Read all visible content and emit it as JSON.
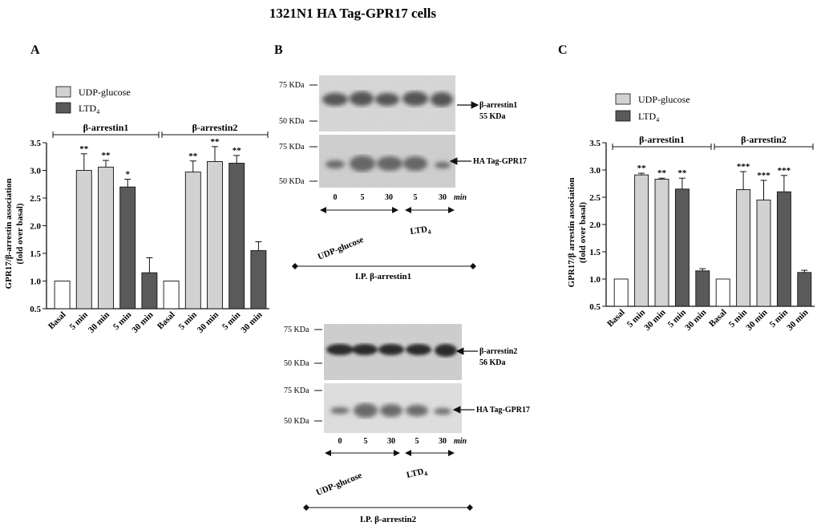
{
  "figure_title": "1321N1 HA Tag-GPR17 cells",
  "colors": {
    "basal": "#ffffff",
    "udp_glucose": "#d2d2d2",
    "ltd4": "#5a5a5a",
    "axis": "#111111"
  },
  "panels": {
    "A": {
      "letter": "A"
    },
    "B": {
      "letter": "B"
    },
    "C": {
      "letter": "C"
    }
  },
  "legend": {
    "udp": "UDP-glucose",
    "ltd4_main": "LTD",
    "ltd4_sub": "4"
  },
  "chart_data": [
    {
      "panel": "A",
      "type": "bar",
      "ylabel_line1": "GPR17/β-arrestin association",
      "ylabel_line2": "(fold over basal)",
      "ylim": [
        0.5,
        3.5
      ],
      "yticks": [
        "0.5",
        "1.0",
        "1.5",
        "2.0",
        "2.5",
        "3.0",
        "3.5"
      ],
      "categories": [
        "Basal",
        "5 min",
        "30 min",
        "5 min",
        "30 min",
        "Basal",
        "5 min",
        "30 min",
        "5 min",
        "30 min"
      ],
      "groups": [
        {
          "label": "β-arrestin1",
          "from": 0,
          "to": 4
        },
        {
          "label": "β-arrestin2",
          "from": 5,
          "to": 9
        }
      ],
      "bars": [
        {
          "value": 1.0,
          "err": 0.0,
          "treatment": "basal",
          "sig": ""
        },
        {
          "value": 3.0,
          "err": 0.3,
          "treatment": "udp_glucose",
          "sig": "**"
        },
        {
          "value": 3.06,
          "err": 0.12,
          "treatment": "udp_glucose",
          "sig": "**"
        },
        {
          "value": 2.7,
          "err": 0.14,
          "treatment": "ltd4",
          "sig": "*"
        },
        {
          "value": 1.15,
          "err": 0.27,
          "treatment": "ltd4",
          "sig": ""
        },
        {
          "value": 1.0,
          "err": 0.0,
          "treatment": "basal",
          "sig": ""
        },
        {
          "value": 2.97,
          "err": 0.2,
          "treatment": "udp_glucose",
          "sig": "**"
        },
        {
          "value": 3.16,
          "err": 0.27,
          "treatment": "udp_glucose",
          "sig": "**"
        },
        {
          "value": 3.13,
          "err": 0.14,
          "treatment": "ltd4",
          "sig": "**"
        },
        {
          "value": 1.55,
          "err": 0.16,
          "treatment": "ltd4",
          "sig": ""
        }
      ]
    },
    {
      "panel": "C",
      "type": "bar",
      "ylabel_line1": "GPR17/β arrestin association",
      "ylabel_line2": "(fold over basal)",
      "ylim": [
        0.5,
        3.5
      ],
      "yticks": [
        "0.5",
        "1.0",
        "1.5",
        "2.0",
        "2.5",
        "3.0",
        "3.5"
      ],
      "categories": [
        "Basal",
        "5 min",
        "30 min",
        "5 min",
        "30 min",
        "Basal",
        "5 min",
        "30 min",
        "5 min",
        "30 min"
      ],
      "groups": [
        {
          "label": "β-arrestin1",
          "from": 0,
          "to": 4
        },
        {
          "label": "β-arrestin2",
          "from": 5,
          "to": 9
        }
      ],
      "bars": [
        {
          "value": 1.0,
          "err": 0.0,
          "treatment": "basal",
          "sig": ""
        },
        {
          "value": 2.91,
          "err": 0.03,
          "treatment": "udp_glucose",
          "sig": "**"
        },
        {
          "value": 2.83,
          "err": 0.02,
          "treatment": "udp_glucose",
          "sig": "**"
        },
        {
          "value": 2.65,
          "err": 0.2,
          "treatment": "ltd4",
          "sig": "**"
        },
        {
          "value": 1.15,
          "err": 0.04,
          "treatment": "ltd4",
          "sig": ""
        },
        {
          "value": 1.0,
          "err": 0.0,
          "treatment": "basal",
          "sig": ""
        },
        {
          "value": 2.64,
          "err": 0.33,
          "treatment": "udp_glucose",
          "sig": "***"
        },
        {
          "value": 2.45,
          "err": 0.36,
          "treatment": "udp_glucose",
          "sig": "***"
        },
        {
          "value": 2.6,
          "err": 0.3,
          "treatment": "ltd4",
          "sig": "***"
        },
        {
          "value": 1.12,
          "err": 0.04,
          "treatment": "ltd4",
          "sig": ""
        }
      ]
    }
  ],
  "blots": [
    {
      "markers_top": [
        "75 KDa",
        "50 KDa"
      ],
      "markers_bottom": [
        "75 KDa",
        "50 KDa"
      ],
      "band_top_line1": "β-arrestin1",
      "band_top_line2": "55 KDa",
      "band_bottom": "HA Tag-GPR17",
      "lanes": [
        "0",
        "5",
        "30",
        "5",
        "30"
      ],
      "unit": "min",
      "treat_udp": "UDP-glucose",
      "treat_ltd_main": "LTD",
      "treat_ltd_sub": "4",
      "ip": "I.P. β-arrestin1"
    },
    {
      "markers_top": [
        "75 KDa",
        "50 KDa"
      ],
      "markers_bottom": [
        "75 KDa",
        "50 KDa"
      ],
      "band_top_line1": "β-arrestin2",
      "band_top_line2": "56 KDa",
      "band_bottom": "HA Tag-GPR17",
      "lanes": [
        "0",
        "5",
        "30",
        "5",
        "30"
      ],
      "unit": "min",
      "treat_udp": "UDP-glucose",
      "treat_ltd_main": "LTD",
      "treat_ltd_sub": "4",
      "ip": "I.P. β-arrestin2"
    }
  ]
}
